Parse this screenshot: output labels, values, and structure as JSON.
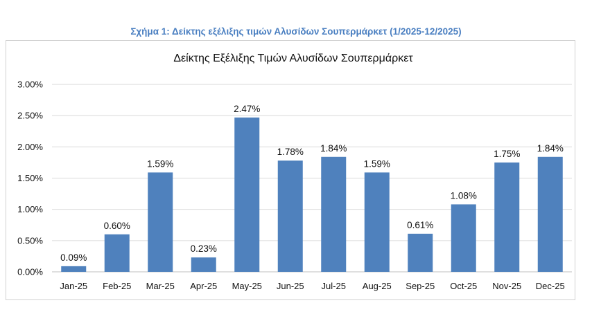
{
  "figure_caption": "Σχήμα 1: Δείκτης εξέλιξης τιμών Αλυσίδων Σουπερμάρκετ (1/2025-12/2025)",
  "chart_data": {
    "type": "bar",
    "title": "Δείκτης Εξέλιξης Τιμών Αλυσίδων Σουπερμάρκετ",
    "xlabel": "",
    "ylabel": "",
    "categories": [
      "Jan-25",
      "Feb-25",
      "Mar-25",
      "Apr-25",
      "May-25",
      "Jun-25",
      "Jul-25",
      "Aug-25",
      "Sep-25",
      "Oct-25",
      "Nov-25",
      "Dec-25"
    ],
    "values": [
      0.09,
      0.6,
      1.59,
      0.23,
      2.47,
      1.78,
      1.84,
      1.59,
      0.61,
      1.08,
      1.75,
      1.84
    ],
    "value_labels": [
      "0.09%",
      "0.60%",
      "1.59%",
      "0.23%",
      "2.47%",
      "1.78%",
      "1.84%",
      "1.59%",
      "0.61%",
      "1.08%",
      "1.75%",
      "1.84%"
    ],
    "ylim": [
      0,
      3.0
    ],
    "yticks": [
      0,
      0.5,
      1.0,
      1.5,
      2.0,
      2.5,
      3.0
    ],
    "ytick_labels": [
      "0.00%",
      "0.50%",
      "1.00%",
      "1.50%",
      "2.00%",
      "2.50%",
      "3.00%"
    ],
    "grid": true,
    "legend": false,
    "bar_color": "#4f81bd"
  }
}
